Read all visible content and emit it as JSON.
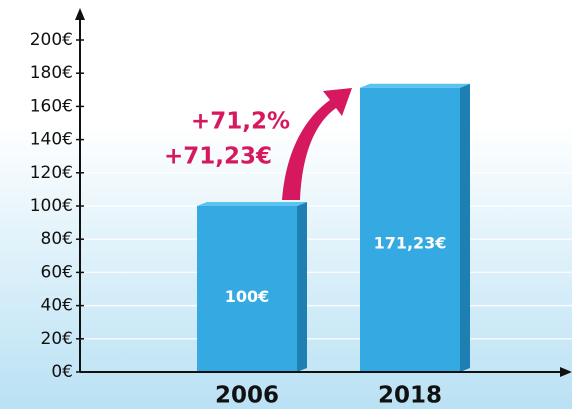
{
  "chart_data": {
    "type": "bar",
    "categories": [
      "2006",
      "2018"
    ],
    "values": [
      100,
      171.23
    ],
    "value_labels": [
      "100€",
      "171,23€"
    ],
    "color": "#35a9e1",
    "ylim": [
      0,
      200
    ],
    "yticks": [
      {
        "value": 0,
        "label": "0€"
      },
      {
        "value": 20,
        "label": "20€"
      },
      {
        "value": 40,
        "label": "40€"
      },
      {
        "value": 60,
        "label": "60€"
      },
      {
        "value": 80,
        "label": "80€"
      },
      {
        "value": 100,
        "label": "100€"
      },
      {
        "value": 120,
        "label": "120€"
      },
      {
        "value": 140,
        "label": "140€"
      },
      {
        "value": 160,
        "label": "160€"
      },
      {
        "value": 180,
        "label": "180€"
      },
      {
        "value": 200,
        "label": "200€"
      }
    ],
    "grid": true,
    "annotations": [
      "+71,2%",
      "+71,23€"
    ]
  }
}
